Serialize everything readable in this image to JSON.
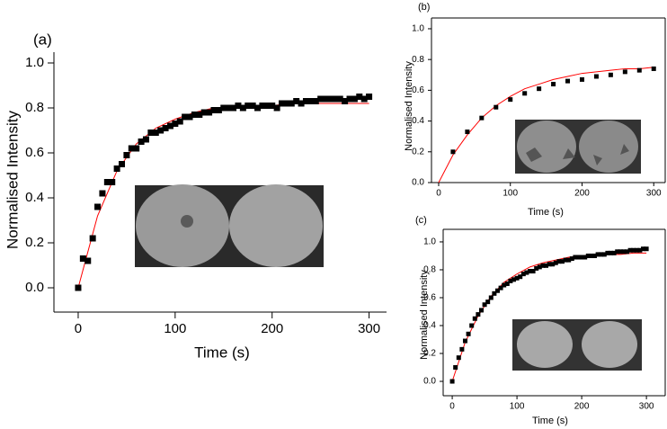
{
  "chart_data": [
    {
      "type": "scatter",
      "label": "(a)",
      "xlabel": "Time (s)",
      "ylabel": "Normalised Intensity",
      "box": false,
      "xlim": [
        -25,
        318
      ],
      "ylim": [
        -0.108,
        1.048
      ],
      "xticks": [
        0,
        100,
        200,
        300
      ],
      "yticks": [
        {
          "value": 0,
          "label": "0.0"
        },
        {
          "value": 0.2,
          "label": "0.2"
        },
        {
          "value": 0.4,
          "label": "0.4"
        },
        {
          "value": 0.6,
          "label": "0.6"
        },
        {
          "value": 0.8,
          "label": "0.8"
        },
        {
          "value": 1,
          "label": "1.0"
        }
      ],
      "series": [
        {
          "type": "scatter",
          "color": "#000000",
          "x": [
            0,
            5,
            10,
            15,
            20,
            25,
            30,
            35,
            40,
            45,
            50,
            55,
            60,
            65,
            70,
            75,
            80,
            85,
            90,
            95,
            100,
            105,
            110,
            115,
            120,
            125,
            130,
            135,
            140,
            145,
            150,
            155,
            160,
            165,
            170,
            175,
            180,
            185,
            190,
            195,
            200,
            205,
            210,
            215,
            220,
            225,
            230,
            235,
            240,
            245,
            250,
            255,
            260,
            265,
            270,
            275,
            280,
            285,
            290,
            295,
            300
          ],
          "values": [
            0,
            0.13,
            0.12,
            0.22,
            0.36,
            0.42,
            0.47,
            0.47,
            0.53,
            0.55,
            0.59,
            0.62,
            0.62,
            0.65,
            0.66,
            0.69,
            0.69,
            0.7,
            0.71,
            0.72,
            0.73,
            0.74,
            0.76,
            0.76,
            0.77,
            0.77,
            0.78,
            0.78,
            0.79,
            0.79,
            0.8,
            0.8,
            0.8,
            0.81,
            0.8,
            0.81,
            0.81,
            0.8,
            0.81,
            0.81,
            0.81,
            0.8,
            0.82,
            0.82,
            0.82,
            0.83,
            0.82,
            0.83,
            0.83,
            0.83,
            0.84,
            0.84,
            0.84,
            0.84,
            0.84,
            0.83,
            0.84,
            0.84,
            0.85,
            0.84,
            0.85
          ]
        },
        {
          "type": "line",
          "color": "#ff0000",
          "x": [
            0,
            20,
            40,
            60,
            80,
            100,
            120,
            140,
            160,
            180,
            200,
            220,
            240,
            260,
            280,
            300
          ],
          "values": [
            0,
            0.32,
            0.52,
            0.64,
            0.71,
            0.75,
            0.78,
            0.8,
            0.8,
            0.81,
            0.81,
            0.82,
            0.82,
            0.82,
            0.82,
            0.82
          ]
        }
      ]
    },
    {
      "type": "scatter",
      "label": "(b)",
      "xlabel": "Time (s)",
      "ylabel": "Normalised Intensity",
      "box": true,
      "xlim": [
        -10,
        316
      ],
      "ylim": [
        0,
        1.07
      ],
      "xticks": [
        0,
        100,
        200,
        300
      ],
      "yticks": [
        {
          "value": 0,
          "label": "0.0"
        },
        {
          "value": 0.2,
          "label": "0.2"
        },
        {
          "value": 0.4,
          "label": "0.4"
        },
        {
          "value": 0.6,
          "label": "0.6"
        },
        {
          "value": 0.8,
          "label": "0.8"
        },
        {
          "value": 1,
          "label": "1.0"
        }
      ],
      "series": [
        {
          "type": "scatter",
          "color": "#000000",
          "x": [
            20,
            40,
            60,
            80,
            100,
            120,
            140,
            160,
            180,
            200,
            220,
            240,
            260,
            280,
            300
          ],
          "values": [
            0.2,
            0.33,
            0.42,
            0.49,
            0.54,
            0.58,
            0.61,
            0.64,
            0.66,
            0.67,
            0.69,
            0.7,
            0.72,
            0.73,
            0.74
          ]
        },
        {
          "type": "line",
          "color": "#ff0000",
          "x": [
            0,
            20,
            40,
            60,
            80,
            100,
            120,
            140,
            160,
            180,
            200,
            220,
            240,
            260,
            280,
            300
          ],
          "values": [
            0,
            0.18,
            0.31,
            0.42,
            0.5,
            0.56,
            0.61,
            0.64,
            0.67,
            0.69,
            0.71,
            0.72,
            0.73,
            0.74,
            0.74,
            0.75
          ]
        }
      ]
    },
    {
      "type": "scatter",
      "label": "(c)",
      "xlabel": "Time (s)",
      "ylabel": "Normalised Intensity",
      "box": true,
      "xlim": [
        -14,
        329
      ],
      "ylim": [
        -0.103,
        1.09
      ],
      "xticks": [
        0,
        100,
        200,
        300
      ],
      "yticks": [
        {
          "value": 0,
          "label": "0.0"
        },
        {
          "value": 0.2,
          "label": "0.2"
        },
        {
          "value": 0.4,
          "label": "0.4"
        },
        {
          "value": 0.6,
          "label": "0.6"
        },
        {
          "value": 0.8,
          "label": "0.8"
        },
        {
          "value": 1,
          "label": "1.0"
        }
      ],
      "series": [
        {
          "type": "scatter",
          "color": "#000000",
          "x": [
            0,
            5,
            10,
            15,
            20,
            25,
            30,
            35,
            40,
            45,
            50,
            55,
            60,
            65,
            70,
            75,
            80,
            85,
            90,
            95,
            100,
            105,
            110,
            115,
            120,
            125,
            130,
            135,
            140,
            145,
            150,
            155,
            160,
            165,
            170,
            175,
            180,
            185,
            190,
            195,
            200,
            205,
            210,
            215,
            220,
            225,
            230,
            235,
            240,
            245,
            250,
            255,
            260,
            265,
            270,
            275,
            280,
            285,
            290,
            295,
            300
          ],
          "values": [
            0,
            0.1,
            0.17,
            0.23,
            0.29,
            0.34,
            0.4,
            0.45,
            0.48,
            0.51,
            0.55,
            0.57,
            0.6,
            0.63,
            0.65,
            0.67,
            0.69,
            0.7,
            0.72,
            0.73,
            0.74,
            0.75,
            0.77,
            0.78,
            0.79,
            0.79,
            0.81,
            0.82,
            0.83,
            0.83,
            0.84,
            0.84,
            0.85,
            0.86,
            0.86,
            0.87,
            0.87,
            0.88,
            0.89,
            0.89,
            0.89,
            0.89,
            0.9,
            0.9,
            0.9,
            0.91,
            0.91,
            0.91,
            0.92,
            0.92,
            0.92,
            0.93,
            0.93,
            0.93,
            0.93,
            0.94,
            0.94,
            0.94,
            0.94,
            0.95,
            0.95
          ]
        },
        {
          "type": "line",
          "color": "#ff0000",
          "x": [
            0,
            20,
            40,
            60,
            80,
            100,
            120,
            140,
            160,
            180,
            200,
            220,
            240,
            260,
            280,
            300
          ],
          "values": [
            0,
            0.28,
            0.47,
            0.61,
            0.71,
            0.77,
            0.82,
            0.85,
            0.87,
            0.89,
            0.9,
            0.91,
            0.91,
            0.91,
            0.92,
            0.92
          ]
        }
      ]
    }
  ]
}
